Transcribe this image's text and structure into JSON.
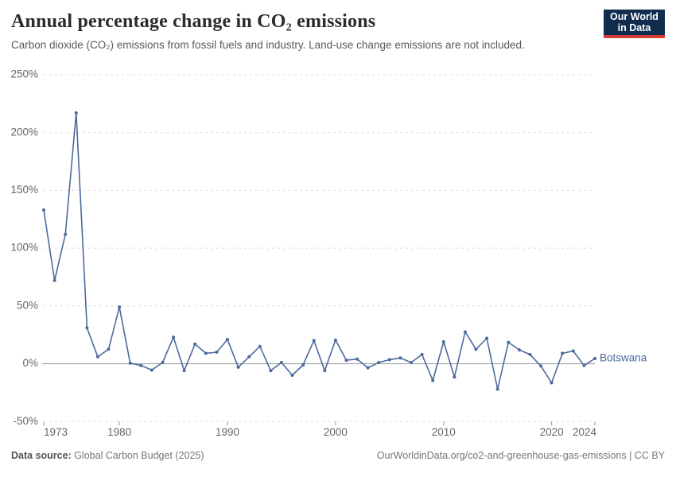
{
  "header": {
    "title": "Annual percentage change in CO₂ emissions",
    "subtitle": "Carbon dioxide (CO₂) emissions from fossil fuels and industry. Land-use change emissions are not included.",
    "logo": {
      "line1": "Our World",
      "line2": "in Data"
    }
  },
  "footer": {
    "source_label": "Data source:",
    "source_value": " Global Carbon Budget (2025)",
    "attribution": "OurWorldinData.org/co2-and-greenhouse-gas-emissions | CC BY"
  },
  "chart_data": {
    "type": "line",
    "title": "Annual percentage change in CO₂ emissions",
    "entity": "Botswana",
    "unit": "%",
    "x": [
      1973,
      1974,
      1975,
      1976,
      1977,
      1978,
      1979,
      1980,
      1981,
      1982,
      1983,
      1984,
      1985,
      1986,
      1987,
      1988,
      1989,
      1990,
      1991,
      1992,
      1993,
      1994,
      1995,
      1996,
      1997,
      1998,
      1999,
      2000,
      2001,
      2002,
      2003,
      2004,
      2005,
      2006,
      2007,
      2008,
      2009,
      2010,
      2011,
      2012,
      2013,
      2014,
      2015,
      2016,
      2017,
      2018,
      2019,
      2020,
      2021,
      2022,
      2023,
      2024
    ],
    "values": [
      133,
      72,
      112,
      217,
      31,
      6,
      12.5,
      49,
      0.5,
      -1.5,
      -5.5,
      1,
      23,
      -6,
      17,
      9,
      10,
      21,
      -3,
      6,
      15,
      -6,
      1,
      -10,
      -1,
      20,
      -6,
      20.5,
      3,
      4,
      -3.5,
      1,
      3.5,
      5,
      1,
      8,
      -14.5,
      19,
      -11.5,
      27.5,
      12.5,
      22,
      -22,
      18.5,
      12,
      8,
      -2,
      -16.5,
      9,
      11,
      -1.5,
      4.5
    ],
    "xlim": [
      1973,
      2024
    ],
    "ylim": [
      -50,
      250
    ],
    "x_ticks": [
      1973,
      1980,
      1990,
      2000,
      2010,
      2020,
      2024
    ],
    "y_ticks": [
      250,
      200,
      150,
      100,
      50,
      0,
      -50
    ],
    "grid": true,
    "legend_position": "end-of-line",
    "line_color": "#4C6A9C",
    "grid_color": "#dcdcdc",
    "zero_line_color": "#a8a8a8",
    "tick_label_color": "#666666"
  }
}
